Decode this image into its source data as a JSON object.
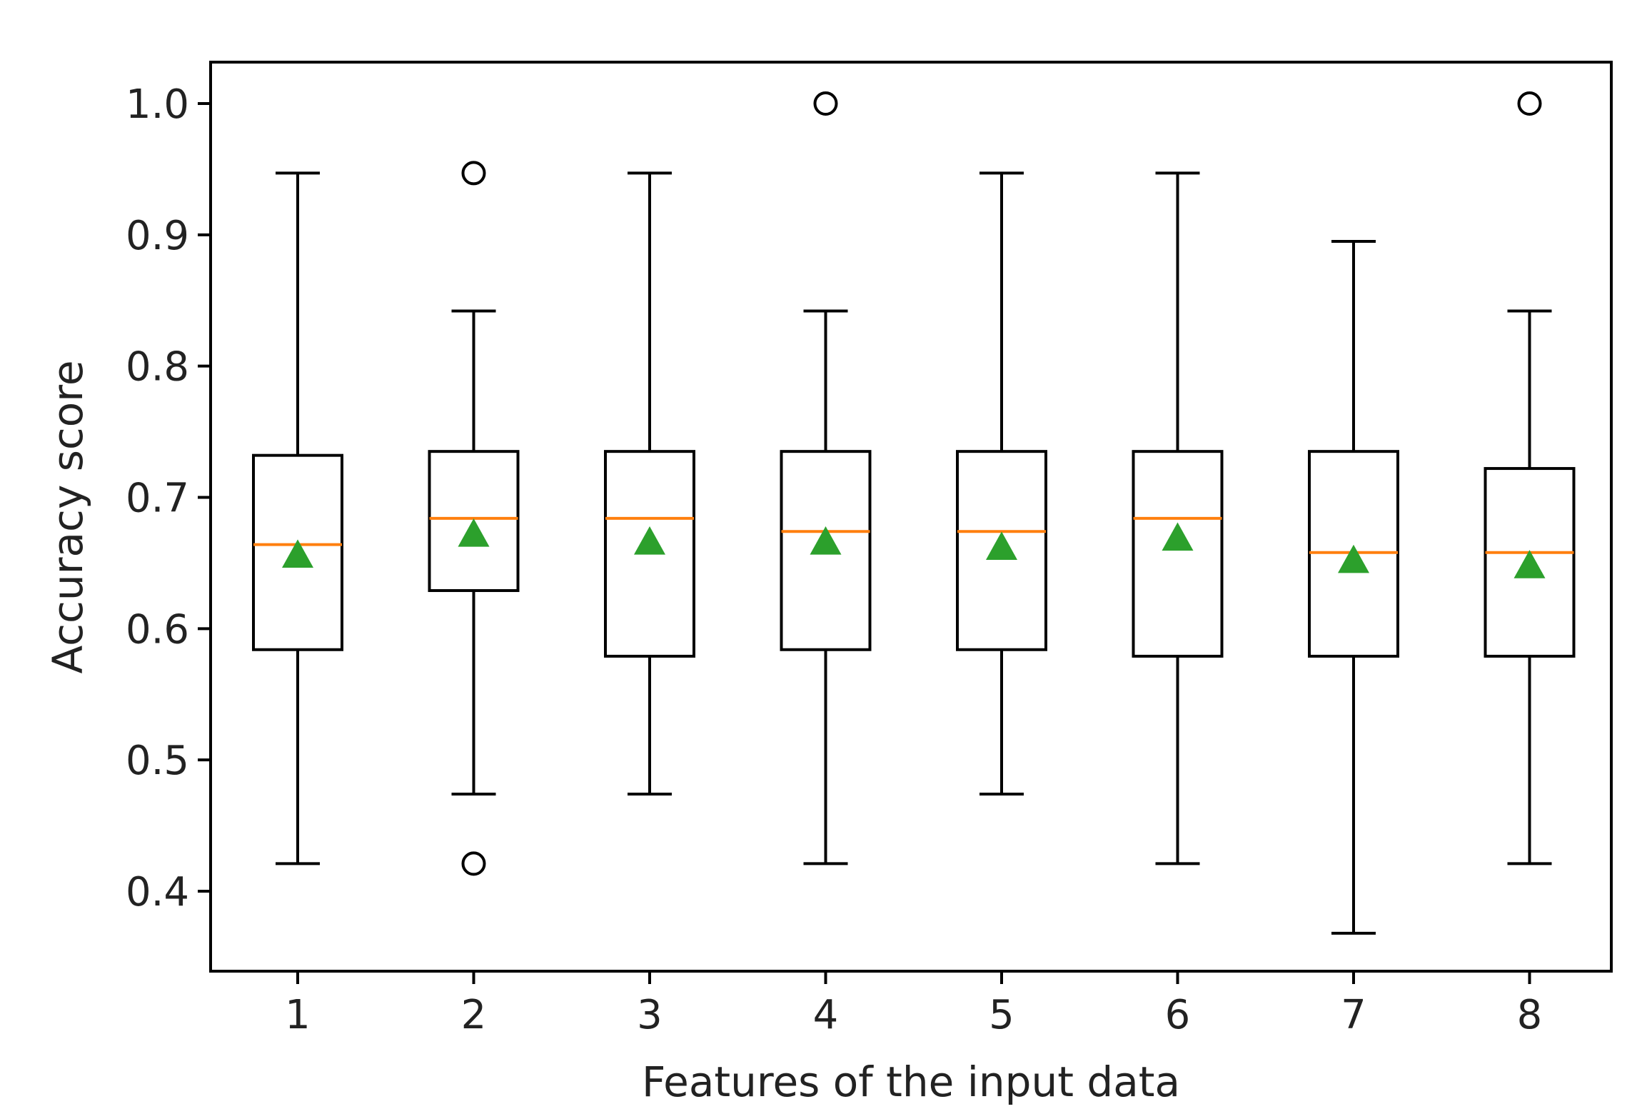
{
  "chart_data": {
    "type": "boxplot",
    "xlabel": "Features of the input data",
    "ylabel": "Accuracy score",
    "ylim": [
      0.34,
      1.03
    ],
    "yticks": [
      "0.4",
      "0.5",
      "0.6",
      "0.7",
      "0.8",
      "0.9",
      "1.0"
    ],
    "categories": [
      "1",
      "2",
      "3",
      "4",
      "5",
      "6",
      "7",
      "8"
    ],
    "grid": false,
    "legend": "none",
    "boxes": [
      {
        "whisker_low": 0.421,
        "q1": 0.584,
        "median": 0.664,
        "q3": 0.732,
        "whisker_high": 0.947,
        "mean": 0.656,
        "outliers": []
      },
      {
        "whisker_low": 0.474,
        "q1": 0.629,
        "median": 0.684,
        "q3": 0.735,
        "whisker_high": 0.842,
        "mean": 0.672,
        "outliers": [
          0.947,
          0.421
        ]
      },
      {
        "whisker_low": 0.474,
        "q1": 0.579,
        "median": 0.684,
        "q3": 0.735,
        "whisker_high": 0.947,
        "mean": 0.666,
        "outliers": []
      },
      {
        "whisker_low": 0.421,
        "q1": 0.584,
        "median": 0.674,
        "q3": 0.735,
        "whisker_high": 0.842,
        "mean": 0.666,
        "outliers": [
          1.0
        ]
      },
      {
        "whisker_low": 0.474,
        "q1": 0.584,
        "median": 0.674,
        "q3": 0.735,
        "whisker_high": 0.947,
        "mean": 0.662,
        "outliers": []
      },
      {
        "whisker_low": 0.421,
        "q1": 0.579,
        "median": 0.684,
        "q3": 0.735,
        "whisker_high": 0.947,
        "mean": 0.669,
        "outliers": []
      },
      {
        "whisker_low": 0.368,
        "q1": 0.579,
        "median": 0.658,
        "q3": 0.735,
        "whisker_high": 0.895,
        "mean": 0.652,
        "outliers": []
      },
      {
        "whisker_low": 0.421,
        "q1": 0.579,
        "median": 0.658,
        "q3": 0.722,
        "whisker_high": 0.842,
        "mean": 0.648,
        "outliers": [
          1.0
        ]
      }
    ],
    "colors": {
      "box": "#000000",
      "median": "#ff7f0e",
      "mean_marker": "#2ca02c",
      "outlier": "#000000"
    }
  }
}
